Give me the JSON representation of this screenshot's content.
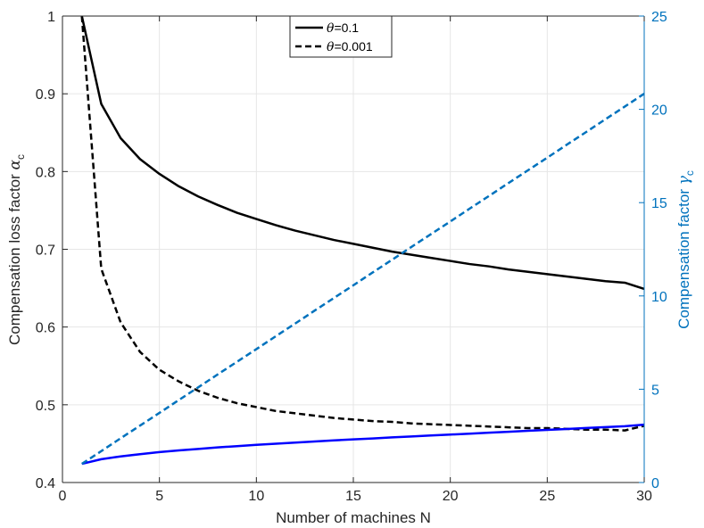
{
  "chart_data": {
    "type": "line",
    "title": "",
    "xlabel": "Number of machines N",
    "ylabel_left_text": "Compensation loss factor ",
    "ylabel_left_symbol": "α",
    "ylabel_left_subscript": "c",
    "ylabel_right_text": "Compensation factor ",
    "ylabel_right_symbol": "γ",
    "ylabel_right_subscript": "c",
    "xlim": [
      0,
      30
    ],
    "ylim_left": [
      0.4,
      1.0
    ],
    "ylim_right": [
      0,
      25
    ],
    "xticks": [
      "0",
      "5",
      "10",
      "15",
      "20",
      "25",
      "30"
    ],
    "yticks_left": [
      "0.4",
      "0.5",
      "0.6",
      "0.7",
      "0.8",
      "0.9",
      "1"
    ],
    "yticks_right": [
      "0",
      "5",
      "10",
      "15",
      "20",
      "25"
    ],
    "grid": true,
    "legend_position": "top-center",
    "colors": {
      "left_axis": "#262626",
      "right_axis": "#0072bd",
      "alpha_series": "#000000",
      "gamma_theta_0_1": "#0000ff",
      "gamma_theta_0_001": "#0072bd",
      "grid": "#e6e6e6"
    },
    "legend": [
      {
        "symbol": "θ",
        "text": "=0.1",
        "dash": "solid"
      },
      {
        "symbol": "θ",
        "text": "=0.001",
        "dash": "dashed"
      }
    ],
    "x": [
      1,
      2,
      3,
      4,
      5,
      6,
      7,
      8,
      9,
      10,
      11,
      12,
      13,
      14,
      15,
      16,
      17,
      18,
      19,
      20,
      21,
      22,
      23,
      24,
      25,
      26,
      27,
      28,
      29,
      30
    ],
    "series": [
      {
        "name": "alpha_c theta=0.1",
        "axis": "left",
        "dash": "solid",
        "color_key": "alpha_series",
        "values": [
          1.0,
          0.887,
          0.843,
          0.816,
          0.797,
          0.781,
          0.768,
          0.757,
          0.747,
          0.739,
          0.731,
          0.724,
          0.718,
          0.712,
          0.707,
          0.702,
          0.697,
          0.693,
          0.689,
          0.685,
          0.681,
          0.678,
          0.674,
          0.671,
          0.668,
          0.665,
          0.662,
          0.659,
          0.657,
          0.649
        ]
      },
      {
        "name": "alpha_c theta=0.001",
        "axis": "left",
        "dash": "dashed",
        "color_key": "alpha_series",
        "values": [
          1.0,
          0.675,
          0.606,
          0.568,
          0.545,
          0.53,
          0.518,
          0.509,
          0.502,
          0.497,
          0.492,
          0.489,
          0.486,
          0.483,
          0.481,
          0.479,
          0.478,
          0.476,
          0.475,
          0.474,
          0.473,
          0.472,
          0.471,
          0.47,
          0.47,
          0.469,
          0.468,
          0.468,
          0.467,
          0.473
        ]
      },
      {
        "name": "gamma_c theta=0.1",
        "axis": "right",
        "dash": "solid",
        "color_key": "gamma_theta_0_1",
        "values": [
          1.0,
          1.25,
          1.4,
          1.52,
          1.63,
          1.72,
          1.8,
          1.88,
          1.95,
          2.02,
          2.08,
          2.14,
          2.2,
          2.26,
          2.31,
          2.36,
          2.42,
          2.47,
          2.52,
          2.57,
          2.62,
          2.67,
          2.72,
          2.77,
          2.82,
          2.87,
          2.92,
          2.97,
          3.02,
          3.1
        ]
      },
      {
        "name": "gamma_c theta=0.001",
        "axis": "right",
        "dash": "dashed",
        "color_key": "gamma_theta_0_001",
        "values": [
          1.0,
          1.68,
          2.37,
          3.05,
          3.73,
          4.42,
          5.1,
          5.79,
          6.47,
          7.15,
          7.84,
          8.52,
          9.21,
          9.89,
          10.57,
          11.26,
          11.94,
          12.63,
          13.31,
          13.99,
          14.68,
          15.36,
          16.05,
          16.73,
          17.41,
          18.1,
          18.78,
          19.47,
          20.15,
          20.84
        ]
      }
    ]
  }
}
